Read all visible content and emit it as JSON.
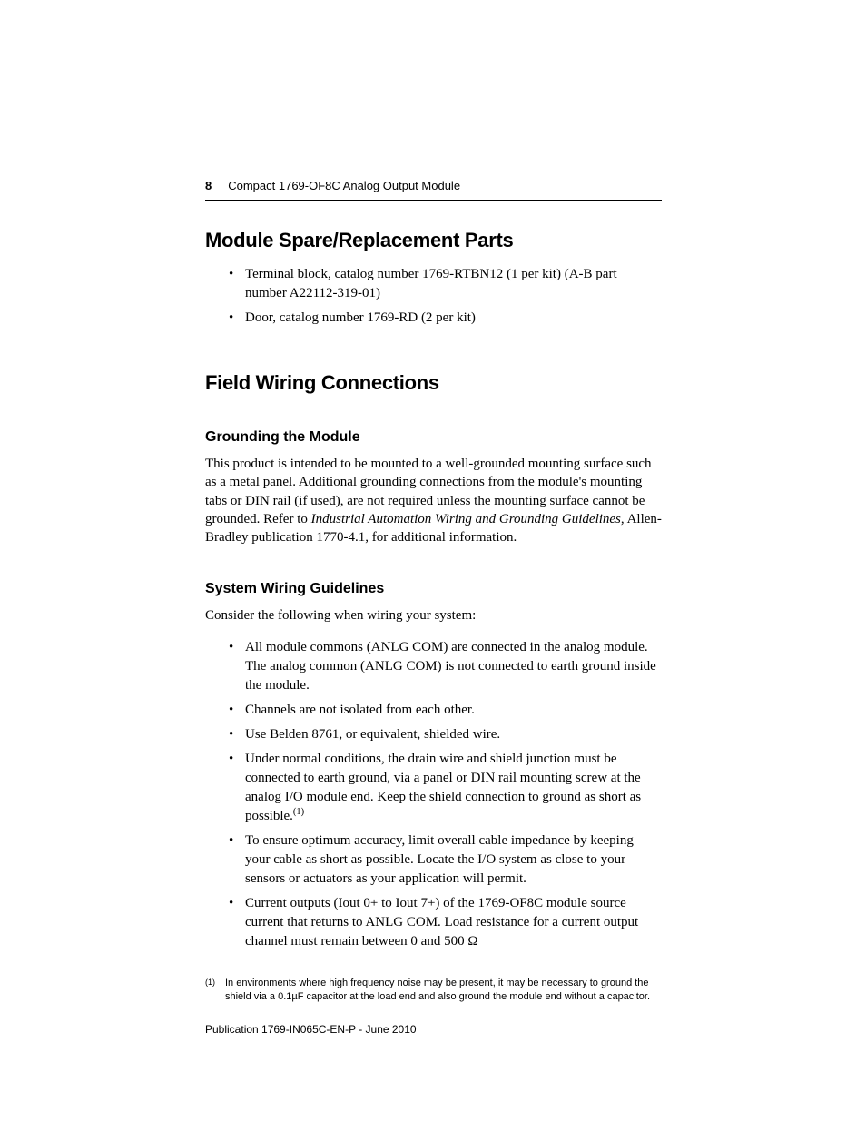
{
  "page": {
    "number": "8",
    "running_title": "Compact 1769-OF8C Analog Output Module",
    "publication_line": "Publication 1769-IN065C-EN-P - June 2010"
  },
  "typography": {
    "body_font": "Garamond / Times-like serif",
    "heading_font": "Helvetica Neue / Arial sans-serif",
    "body_size_pt": 15,
    "h2_size_pt": 22,
    "h3_size_pt": 16,
    "footnote_size_pt": 11,
    "text_color": "#000000",
    "background_color": "#ffffff",
    "rule_color": "#000000"
  },
  "sections": {
    "spare_parts": {
      "heading": "Module Spare/Replacement Parts",
      "items": [
        "Terminal block, catalog number 1769-RTBN12 (1 per kit) (A-B part number A22112-319-01)",
        "Door, catalog number 1769-RD (2 per kit)"
      ]
    },
    "field_wiring": {
      "heading": "Field Wiring Connections",
      "grounding": {
        "heading": "Grounding the Module",
        "para_pre": "This product is intended to be mounted to a well-grounded mounting surface such as a metal panel. Additional grounding connections from the module's mounting tabs or DIN rail (if used), are not required unless the mounting surface cannot be grounded. Refer to ",
        "para_italic": "Industrial Automation Wiring and Grounding Guidelines",
        "para_post": ", Allen-Bradley publication 1770-4.1, for additional information."
      },
      "system_wiring": {
        "heading": "System Wiring Guidelines",
        "intro": "Consider the following when wiring your system:",
        "items": {
          "i0": "All module commons (ANLG COM) are connected in the analog module. The analog common (ANLG COM) is not connected to earth ground inside the module.",
          "i1": "Channels are not isolated from each other.",
          "i2": "Use Belden 8761, or equivalent, shielded wire.",
          "i3_pre": "Under normal conditions, the drain wire and shield junction must be connected to earth ground, via a panel or DIN rail mounting screw at the analog I/O module end. Keep the shield connection to ground as short as possible.",
          "i3_sup": "(1)",
          "i4": "To ensure optimum accuracy, limit overall cable impedance by keeping your cable as short as possible. Locate the I/O system as close to your sensors or actuators as your application will permit.",
          "i5": "Current outputs (Iout 0+ to Iout 7+) of the 1769-OF8C module source current that returns to ANLG COM. Load resistance for a current output channel must remain between 0 and 500 Ω"
        }
      }
    }
  },
  "footnote": {
    "marker": "(1)",
    "text": "In environments where high frequency noise may be present, it may be necessary to ground the shield via a 0.1µF capacitor at the load end and also ground the module end without a capacitor."
  }
}
